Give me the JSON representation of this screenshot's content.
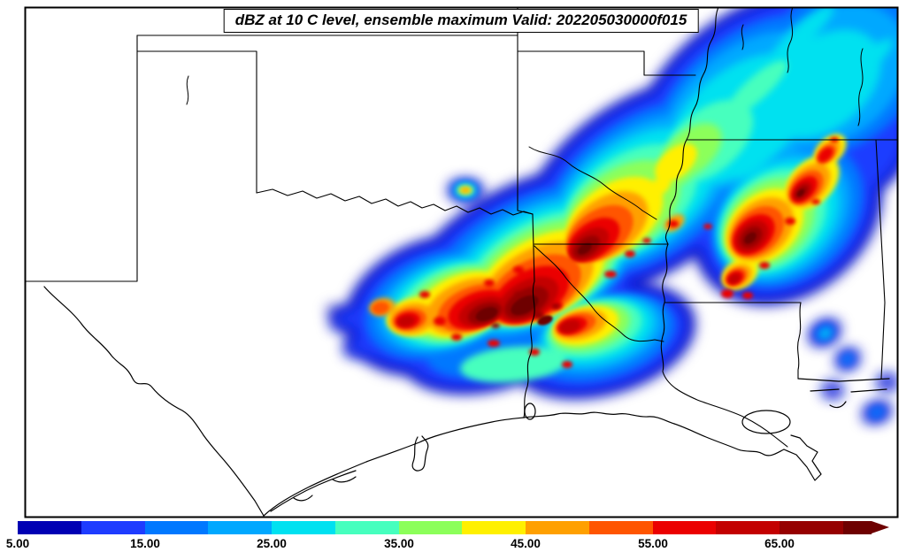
{
  "title": {
    "text": "dBZ at 10 C level, ensemble maximum Valid: 202205030000f015"
  },
  "colorbar": {
    "tick_labels": [
      "5.00",
      "15.00",
      "25.00",
      "35.00",
      "45.00",
      "55.00",
      "65.00"
    ],
    "levels": [
      {
        "value": 5,
        "color": "#0000b4"
      },
      {
        "value": 10,
        "color": "#1e3cff"
      },
      {
        "value": 15,
        "color": "#0078ff"
      },
      {
        "value": 20,
        "color": "#00a8ff"
      },
      {
        "value": 25,
        "color": "#00e1f0"
      },
      {
        "value": 30,
        "color": "#46ffbe"
      },
      {
        "value": 35,
        "color": "#8cff5a"
      },
      {
        "value": 40,
        "color": "#fff000"
      },
      {
        "value": 45,
        "color": "#ffa000"
      },
      {
        "value": 50,
        "color": "#ff5500"
      },
      {
        "value": 55,
        "color": "#eb0000"
      },
      {
        "value": 60,
        "color": "#c30000"
      },
      {
        "value": 65,
        "color": "#960000"
      },
      {
        "value": 70,
        "color": "#6e0000"
      }
    ],
    "line_color": "#000000",
    "background": "#ffffff"
  }
}
